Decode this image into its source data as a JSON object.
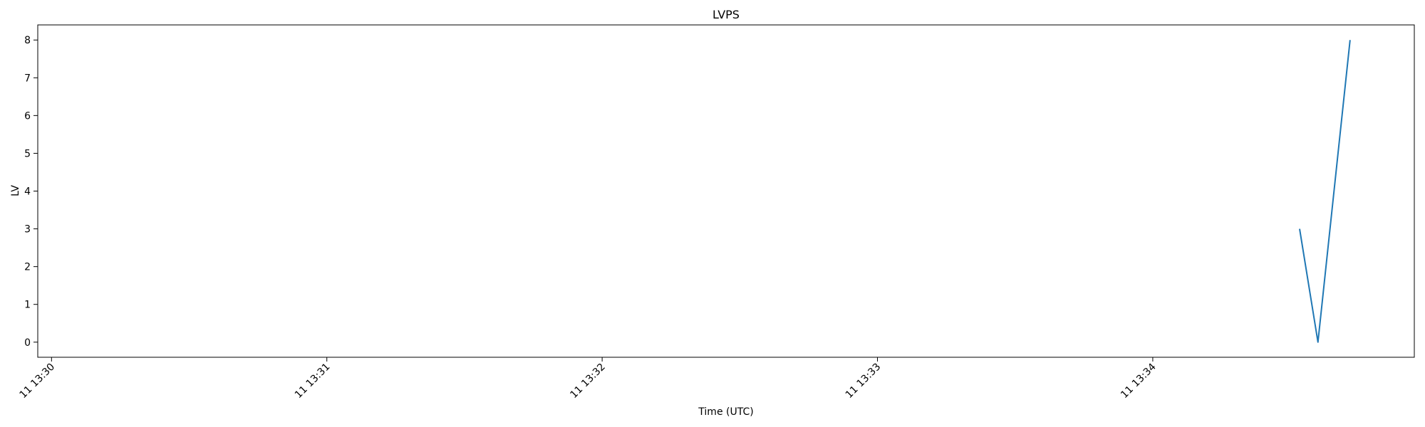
{
  "chart_data": {
    "type": "line",
    "title": "LVPS",
    "xlabel": "Time (UTC)",
    "ylabel": "LV",
    "x_ticks": [
      "11 13:30",
      "11 13:31",
      "11 13:32",
      "11 13:33",
      "11 13:34"
    ],
    "x_tick_values": [
      "13:30:00",
      "13:31:00",
      "13:32:00",
      "13:33:00",
      "13:34:00"
    ],
    "y_ticks": [
      0,
      1,
      2,
      3,
      4,
      5,
      6,
      7,
      8
    ],
    "xlim": [
      "13:29:57",
      "13:34:57"
    ],
    "ylim": [
      -0.4,
      8.4
    ],
    "grid": false,
    "series": [
      {
        "color": "#1f77b4",
        "x": [
          "13:34:32",
          "13:34:36",
          "13:34:43"
        ],
        "y": [
          3,
          0,
          8
        ]
      }
    ]
  }
}
